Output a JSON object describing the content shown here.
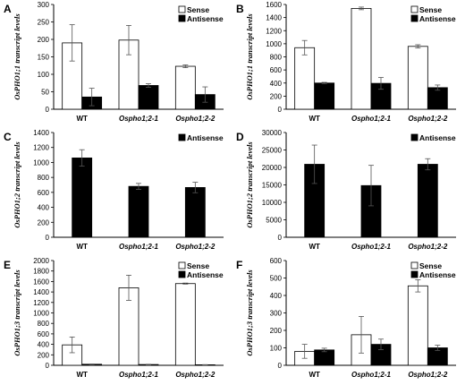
{
  "chart_data": [
    {
      "panel": "A",
      "type": "bar",
      "ylabel": "OsPHO1;1 transcript levels",
      "ylim": [
        0,
        300
      ],
      "yticks": [
        0,
        50,
        100,
        150,
        200,
        250,
        300
      ],
      "categories": [
        "WT",
        "Ospho1;2-1",
        "Ospho1;2-2"
      ],
      "legend": [
        "Sense",
        "Antisense"
      ],
      "series": [
        {
          "name": "Sense",
          "values": [
            190,
            198,
            123
          ],
          "errors": [
            52,
            42,
            4
          ],
          "color": "#ffffff"
        },
        {
          "name": "Antisense",
          "values": [
            35,
            68,
            42
          ],
          "errors": [
            25,
            5,
            22
          ],
          "color": "#000000"
        }
      ]
    },
    {
      "panel": "B",
      "type": "bar",
      "ylabel": "OsPHO1;1 transcript levels",
      "ylim": [
        0,
        1600
      ],
      "yticks": [
        0,
        200,
        400,
        600,
        800,
        1000,
        1200,
        1400,
        1600
      ],
      "categories": [
        "WT",
        "Ospho1;2-1",
        "Ospho1;2-2"
      ],
      "legend": [
        "Sense",
        "Antisense"
      ],
      "series": [
        {
          "name": "Sense",
          "values": [
            940,
            1540,
            960
          ],
          "errors": [
            110,
            20,
            25
          ],
          "color": "#ffffff"
        },
        {
          "name": "Antisense",
          "values": [
            400,
            395,
            330
          ],
          "errors": [
            10,
            90,
            40
          ],
          "color": "#000000"
        }
      ]
    },
    {
      "panel": "C",
      "type": "bar",
      "ylabel": "OsPHO1;2 transcript levels",
      "ylim": [
        0,
        1400
      ],
      "yticks": [
        0,
        200,
        400,
        600,
        800,
        1000,
        1200,
        1400
      ],
      "categories": [
        "WT",
        "Ospho1;2-1",
        "Ospho1;2-2"
      ],
      "legend": [
        "Antisense"
      ],
      "series": [
        {
          "name": "Antisense",
          "values": [
            1060,
            680,
            665
          ],
          "errors": [
            110,
            40,
            70
          ],
          "color": "#000000"
        }
      ]
    },
    {
      "panel": "D",
      "type": "bar",
      "ylabel": "OsPHO1;2 transcript levels",
      "ylim": [
        0,
        30000
      ],
      "yticks": [
        0,
        5000,
        10000,
        15000,
        20000,
        25000,
        30000
      ],
      "categories": [
        "WT",
        "Ospho1;2-1",
        "Ospho1;2-2"
      ],
      "legend": [
        "Antisense"
      ],
      "series": [
        {
          "name": "Antisense",
          "values": [
            20900,
            14800,
            20900
          ],
          "errors": [
            5500,
            5800,
            1600
          ],
          "color": "#000000"
        }
      ]
    },
    {
      "panel": "E",
      "type": "bar",
      "ylabel": "OsPHO1;3 transcript levels",
      "ylim": [
        0,
        2000
      ],
      "yticks": [
        0,
        200,
        400,
        600,
        800,
        1000,
        1200,
        1400,
        1600,
        1800,
        2000
      ],
      "categories": [
        "WT",
        "Ospho1;2-1",
        "Ospho1;2-2"
      ],
      "legend": [
        "Sense",
        "Antisense"
      ],
      "series": [
        {
          "name": "Sense",
          "values": [
            390,
            1480,
            1560
          ],
          "errors": [
            150,
            240,
            10
          ],
          "color": "#ffffff"
        },
        {
          "name": "Antisense",
          "values": [
            20,
            15,
            10
          ],
          "errors": [
            5,
            5,
            3
          ],
          "color": "#000000"
        }
      ]
    },
    {
      "panel": "F",
      "type": "bar",
      "ylabel": "OsPHO1;3 transcript levels",
      "ylim": [
        0,
        600
      ],
      "yticks": [
        0,
        100,
        200,
        300,
        400,
        500,
        600
      ],
      "categories": [
        "WT",
        "Ospho1;2-1",
        "Ospho1;2-2"
      ],
      "legend": [
        "Sense",
        "Antisense"
      ],
      "series": [
        {
          "name": "Sense",
          "values": [
            80,
            175,
            455
          ],
          "errors": [
            40,
            105,
            35
          ],
          "color": "#ffffff"
        },
        {
          "name": "Antisense",
          "values": [
            88,
            120,
            100
          ],
          "errors": [
            10,
            30,
            15
          ],
          "color": "#000000"
        }
      ]
    }
  ]
}
